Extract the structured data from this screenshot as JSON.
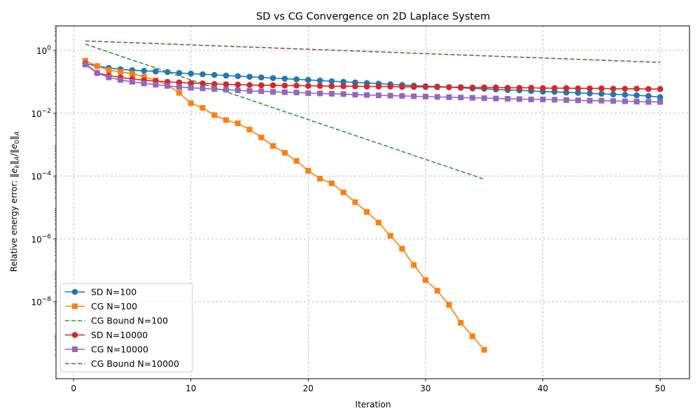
{
  "chart_data": {
    "type": "line",
    "title": "SD vs CG Convergence on 2D Laplace System",
    "xlabel": "Iteration",
    "ylabel": "Relative energy error: ‖e_k‖_A/‖e_0‖_A",
    "ylabel_parts": {
      "prefix": "Relative energy error: ",
      "e": "e",
      "k": "k",
      "A": "A",
      "zero": "0"
    },
    "xlim": [
      -1.5,
      52.5
    ],
    "ylim_log10": [
      -10.45,
      0.78
    ],
    "y_scale": "log",
    "grid": true,
    "legend_position": "lower left",
    "x_ticks": [
      0,
      10,
      20,
      30,
      40,
      50
    ],
    "x_tick_labels": [
      "0",
      "10",
      "20",
      "30",
      "40",
      "50"
    ],
    "y_tick_exponents": [
      0,
      -2,
      -4,
      -6,
      -8
    ],
    "y_tick_labels": [
      {
        "base": "10",
        "exp": "0"
      },
      {
        "base": "10",
        "exp": "−2"
      },
      {
        "base": "10",
        "exp": "−4"
      },
      {
        "base": "10",
        "exp": "−6"
      },
      {
        "base": "10",
        "exp": "−8"
      }
    ],
    "series": [
      {
        "name": "SD N=100",
        "color": "#1f77b4",
        "marker": "circle",
        "dash": false,
        "x": [
          1,
          2,
          3,
          4,
          5,
          6,
          7,
          8,
          9,
          10,
          11,
          12,
          13,
          14,
          15,
          16,
          17,
          18,
          19,
          20,
          21,
          22,
          23,
          24,
          25,
          26,
          27,
          28,
          29,
          30,
          31,
          32,
          33,
          34,
          35,
          36,
          37,
          38,
          39,
          40,
          41,
          42,
          43,
          44,
          45,
          46,
          47,
          48,
          49,
          50
        ],
        "log10_y": [
          -0.42,
          -0.5,
          -0.56,
          -0.6,
          -0.63,
          -0.65,
          -0.67,
          -0.69,
          -0.72,
          -0.74,
          -0.76,
          -0.78,
          -0.8,
          -0.82,
          -0.84,
          -0.86,
          -0.88,
          -0.9,
          -0.92,
          -0.94,
          -0.96,
          -0.98,
          -1.0,
          -1.02,
          -1.04,
          -1.06,
          -1.08,
          -1.1,
          -1.12,
          -1.14,
          -1.15,
          -1.17,
          -1.19,
          -1.21,
          -1.22,
          -1.24,
          -1.26,
          -1.27,
          -1.29,
          -1.31,
          -1.32,
          -1.34,
          -1.35,
          -1.37,
          -1.38,
          -1.4,
          -1.41,
          -1.43,
          -1.45,
          -1.49
        ]
      },
      {
        "name": "CG N=100",
        "color": "#ff7f0e",
        "marker": "square",
        "dash": false,
        "x": [
          1,
          2,
          3,
          4,
          5,
          6,
          7,
          8,
          9,
          10,
          11,
          12,
          13,
          14,
          15,
          16,
          17,
          18,
          19,
          20,
          21,
          22,
          23,
          24,
          25,
          26,
          27,
          28,
          29,
          30,
          31,
          32,
          33,
          34,
          35
        ],
        "log10_y": [
          -0.33,
          -0.5,
          -0.63,
          -0.68,
          -0.74,
          -0.84,
          -0.95,
          -1.1,
          -1.35,
          -1.68,
          -1.83,
          -2.06,
          -2.22,
          -2.32,
          -2.52,
          -2.77,
          -3.04,
          -3.26,
          -3.52,
          -3.83,
          -4.08,
          -4.23,
          -4.52,
          -4.83,
          -5.14,
          -5.48,
          -5.9,
          -6.31,
          -6.83,
          -7.31,
          -7.65,
          -8.1,
          -8.67,
          -9.1,
          -9.53
        ]
      },
      {
        "name": "CG Bound N=100",
        "color": "#2ca02c",
        "marker": "none",
        "dash": true,
        "x": [
          1,
          35
        ],
        "log10_y": [
          0.2,
          -4.1
        ]
      },
      {
        "name": "SD N=10000",
        "color": "#d62728",
        "marker": "circle",
        "dash": false,
        "x": [
          1,
          2,
          3,
          4,
          5,
          6,
          7,
          8,
          9,
          10,
          11,
          12,
          13,
          14,
          15,
          16,
          17,
          18,
          19,
          20,
          21,
          22,
          23,
          24,
          25,
          26,
          27,
          28,
          29,
          30,
          31,
          32,
          33,
          34,
          35,
          36,
          37,
          38,
          39,
          40,
          41,
          42,
          43,
          44,
          45,
          46,
          47,
          48,
          49,
          50
        ],
        "log10_y": [
          -0.42,
          -0.72,
          -0.8,
          -0.86,
          -0.91,
          -0.95,
          -0.98,
          -1.0,
          -1.02,
          -1.04,
          -1.05,
          -1.07,
          -1.08,
          -1.09,
          -1.1,
          -1.11,
          -1.11,
          -1.12,
          -1.12,
          -1.13,
          -1.13,
          -1.14,
          -1.14,
          -1.14,
          -1.15,
          -1.15,
          -1.15,
          -1.16,
          -1.16,
          -1.16,
          -1.17,
          -1.17,
          -1.17,
          -1.18,
          -1.18,
          -1.18,
          -1.19,
          -1.19,
          -1.19,
          -1.2,
          -1.2,
          -1.2,
          -1.21,
          -1.21,
          -1.21,
          -1.22,
          -1.22,
          -1.22,
          -1.23,
          -1.23
        ]
      },
      {
        "name": "CG N=10000",
        "color": "#9467bd",
        "marker": "square",
        "dash": false,
        "x": [
          1,
          2,
          3,
          4,
          5,
          6,
          7,
          8,
          9,
          10,
          11,
          12,
          13,
          14,
          15,
          16,
          17,
          18,
          19,
          20,
          21,
          22,
          23,
          24,
          25,
          26,
          27,
          28,
          29,
          30,
          31,
          32,
          33,
          34,
          35,
          36,
          37,
          38,
          39,
          40,
          41,
          42,
          43,
          44,
          45,
          46,
          47,
          48,
          49,
          50
        ],
        "log10_y": [
          -0.45,
          -0.72,
          -0.86,
          -0.94,
          -1.0,
          -1.05,
          -1.09,
          -1.13,
          -1.16,
          -1.19,
          -1.21,
          -1.23,
          -1.25,
          -1.27,
          -1.29,
          -1.3,
          -1.32,
          -1.33,
          -1.34,
          -1.36,
          -1.37,
          -1.38,
          -1.39,
          -1.41,
          -1.42,
          -1.43,
          -1.44,
          -1.45,
          -1.46,
          -1.47,
          -1.48,
          -1.49,
          -1.5,
          -1.51,
          -1.52,
          -1.53,
          -1.54,
          -1.55,
          -1.56,
          -1.56,
          -1.57,
          -1.58,
          -1.59,
          -1.6,
          -1.6,
          -1.61,
          -1.62,
          -1.63,
          -1.64,
          -1.64
        ]
      },
      {
        "name": "CG Bound N=10000",
        "color": "#8c564b",
        "marker": "none",
        "dash": true,
        "x": [
          1,
          50
        ],
        "log10_y": [
          0.3,
          -0.38
        ]
      }
    ]
  }
}
